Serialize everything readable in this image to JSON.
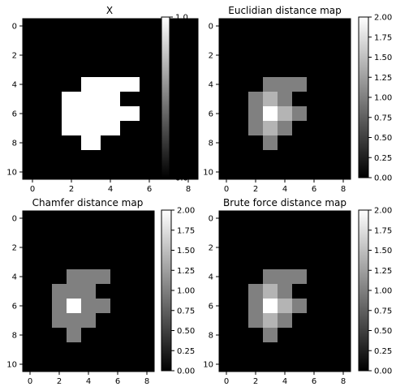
{
  "chart_data": [
    {
      "type": "heatmap",
      "title": "X",
      "xticks": [
        "0",
        "2",
        "4",
        "6",
        "8"
      ],
      "yticks": [
        "0",
        "2",
        "4",
        "6",
        "8",
        "10"
      ],
      "vmin": 0,
      "vmax": 1,
      "colorbar_ticks": [
        "0.0",
        "0.2",
        "0.4",
        "0.6",
        "0.8",
        "1.0"
      ],
      "colormap": "gray",
      "grid": [
        [
          0,
          0,
          0,
          0,
          0,
          0,
          0,
          0,
          0
        ],
        [
          0,
          0,
          0,
          0,
          0,
          0,
          0,
          0,
          0
        ],
        [
          0,
          0,
          0,
          0,
          0,
          0,
          0,
          0,
          0
        ],
        [
          0,
          0,
          0,
          0,
          0,
          0,
          0,
          0,
          0
        ],
        [
          0,
          0,
          0,
          1,
          1,
          1,
          0,
          0,
          0
        ],
        [
          0,
          0,
          1,
          1,
          1,
          0,
          0,
          0,
          0
        ],
        [
          0,
          0,
          1,
          1,
          1,
          1,
          0,
          0,
          0
        ],
        [
          0,
          0,
          1,
          1,
          1,
          0,
          0,
          0,
          0
        ],
        [
          0,
          0,
          0,
          1,
          0,
          0,
          0,
          0,
          0
        ],
        [
          0,
          0,
          0,
          0,
          0,
          0,
          0,
          0,
          0
        ],
        [
          0,
          0,
          0,
          0,
          0,
          0,
          0,
          0,
          0
        ]
      ]
    },
    {
      "type": "heatmap",
      "title": "Euclidian distance map",
      "xticks": [
        "0",
        "2",
        "4",
        "6",
        "8"
      ],
      "yticks": [
        "0",
        "2",
        "4",
        "6",
        "8",
        "10"
      ],
      "vmin": 0,
      "vmax": 2,
      "colorbar_ticks": [
        "0.00",
        "0.25",
        "0.50",
        "0.75",
        "1.00",
        "1.25",
        "1.50",
        "1.75",
        "2.00"
      ],
      "colormap": "gray",
      "grid": [
        [
          0,
          0,
          0,
          0,
          0,
          0,
          0,
          0,
          0
        ],
        [
          0,
          0,
          0,
          0,
          0,
          0,
          0,
          0,
          0
        ],
        [
          0,
          0,
          0,
          0,
          0,
          0,
          0,
          0,
          0
        ],
        [
          0,
          0,
          0,
          0,
          0,
          0,
          0,
          0,
          0
        ],
        [
          0,
          0,
          0,
          1,
          1,
          1,
          0,
          0,
          0
        ],
        [
          0,
          0,
          1,
          1.414,
          1,
          0,
          0,
          0,
          0
        ],
        [
          0,
          0,
          1,
          2,
          1.414,
          1,
          0,
          0,
          0
        ],
        [
          0,
          0,
          1,
          1.414,
          1,
          0,
          0,
          0,
          0
        ],
        [
          0,
          0,
          0,
          1,
          0,
          0,
          0,
          0,
          0
        ],
        [
          0,
          0,
          0,
          0,
          0,
          0,
          0,
          0,
          0
        ],
        [
          0,
          0,
          0,
          0,
          0,
          0,
          0,
          0,
          0
        ]
      ]
    },
    {
      "type": "heatmap",
      "title": "Chamfer distance map",
      "xticks": [
        "0",
        "2",
        "4",
        "6",
        "8"
      ],
      "yticks": [
        "0",
        "2",
        "4",
        "6",
        "8",
        "10"
      ],
      "vmin": 0,
      "vmax": 2,
      "colorbar_ticks": [
        "0.00",
        "0.25",
        "0.50",
        "0.75",
        "1.00",
        "1.25",
        "1.50",
        "1.75",
        "2.00"
      ],
      "colormap": "gray",
      "grid": [
        [
          0,
          0,
          0,
          0,
          0,
          0,
          0,
          0,
          0
        ],
        [
          0,
          0,
          0,
          0,
          0,
          0,
          0,
          0,
          0
        ],
        [
          0,
          0,
          0,
          0,
          0,
          0,
          0,
          0,
          0
        ],
        [
          0,
          0,
          0,
          0,
          0,
          0,
          0,
          0,
          0
        ],
        [
          0,
          0,
          0,
          1,
          1,
          1,
          0,
          0,
          0
        ],
        [
          0,
          0,
          1,
          1,
          1,
          0,
          0,
          0,
          0
        ],
        [
          0,
          0,
          1,
          2,
          1,
          1,
          0,
          0,
          0
        ],
        [
          0,
          0,
          1,
          1,
          1,
          0,
          0,
          0,
          0
        ],
        [
          0,
          0,
          0,
          1,
          0,
          0,
          0,
          0,
          0
        ],
        [
          0,
          0,
          0,
          0,
          0,
          0,
          0,
          0,
          0
        ],
        [
          0,
          0,
          0,
          0,
          0,
          0,
          0,
          0,
          0
        ]
      ]
    },
    {
      "type": "heatmap",
      "title": "Brute force distance map",
      "xticks": [
        "0",
        "2",
        "4",
        "6",
        "8"
      ],
      "yticks": [
        "0",
        "2",
        "4",
        "6",
        "8",
        "10"
      ],
      "vmin": 0,
      "vmax": 2,
      "colorbar_ticks": [
        "0.00",
        "0.25",
        "0.50",
        "0.75",
        "1.00",
        "1.25",
        "1.50",
        "1.75",
        "2.00"
      ],
      "colormap": "gray",
      "grid": [
        [
          0,
          0,
          0,
          0,
          0,
          0,
          0,
          0,
          0
        ],
        [
          0,
          0,
          0,
          0,
          0,
          0,
          0,
          0,
          0
        ],
        [
          0,
          0,
          0,
          0,
          0,
          0,
          0,
          0,
          0
        ],
        [
          0,
          0,
          0,
          0,
          0,
          0,
          0,
          0,
          0
        ],
        [
          0,
          0,
          0,
          1,
          1,
          1,
          0,
          0,
          0
        ],
        [
          0,
          0,
          1,
          1.414,
          1,
          0,
          0,
          0,
          0
        ],
        [
          0,
          0,
          1,
          2,
          1.414,
          1,
          0,
          0,
          0
        ],
        [
          0,
          0,
          1,
          1.414,
          1,
          0,
          0,
          0,
          0
        ],
        [
          0,
          0,
          0,
          1,
          0,
          0,
          0,
          0,
          0
        ],
        [
          0,
          0,
          0,
          0,
          0,
          0,
          0,
          0,
          0
        ],
        [
          0,
          0,
          0,
          0,
          0,
          0,
          0,
          0,
          0
        ]
      ]
    }
  ]
}
